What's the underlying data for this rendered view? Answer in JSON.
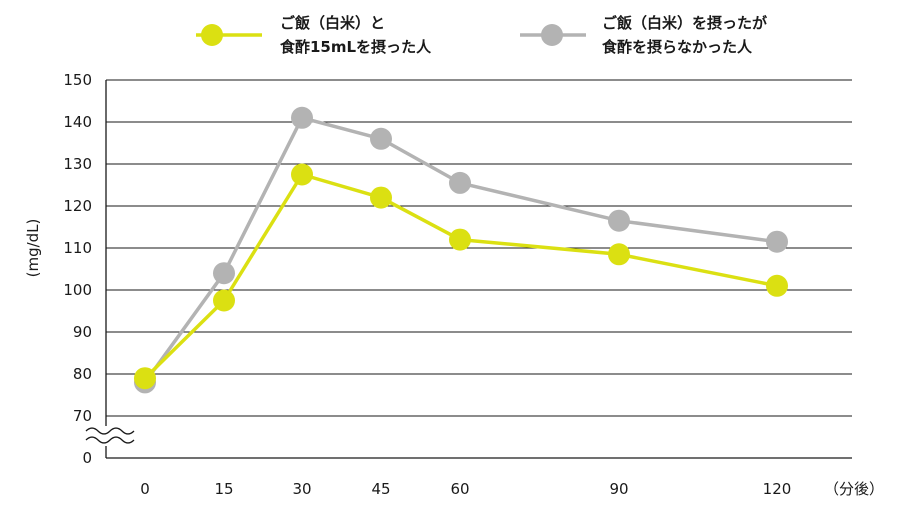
{
  "chart_data": {
    "type": "line",
    "title": "",
    "xlabel": "（分後）",
    "ylabel": "(mg/dL)",
    "x": [
      0,
      15,
      30,
      45,
      60,
      90,
      120
    ],
    "x_tick_labels": [
      "0",
      "15",
      "30",
      "45",
      "60",
      "90",
      "120"
    ],
    "y_tick_labels": [
      "0",
      "70",
      "80",
      "90",
      "100",
      "110",
      "120",
      "130",
      "140",
      "150"
    ],
    "ylim": [
      70,
      150
    ],
    "axis_break": true,
    "grid": true,
    "legend_position": "top",
    "series": [
      {
        "name": "ご飯（白米）と 食酢15mLを摂った人",
        "legend_lines": [
          "ご飯（白米）と",
          "食酢15mLを摂った人"
        ],
        "color": "#dbe012",
        "values": [
          79,
          97.5,
          127.5,
          122,
          112,
          108.5,
          101
        ]
      },
      {
        "name": "ご飯（白米）を摂ったが 食酢を摂らなかった人",
        "legend_lines": [
          "ご飯（白米）を摂ったが",
          "食酢を摂らなかった人"
        ],
        "color": "#b3b3b3",
        "values": [
          78,
          104,
          141,
          136,
          125.5,
          116.5,
          111.5
        ]
      }
    ]
  }
}
